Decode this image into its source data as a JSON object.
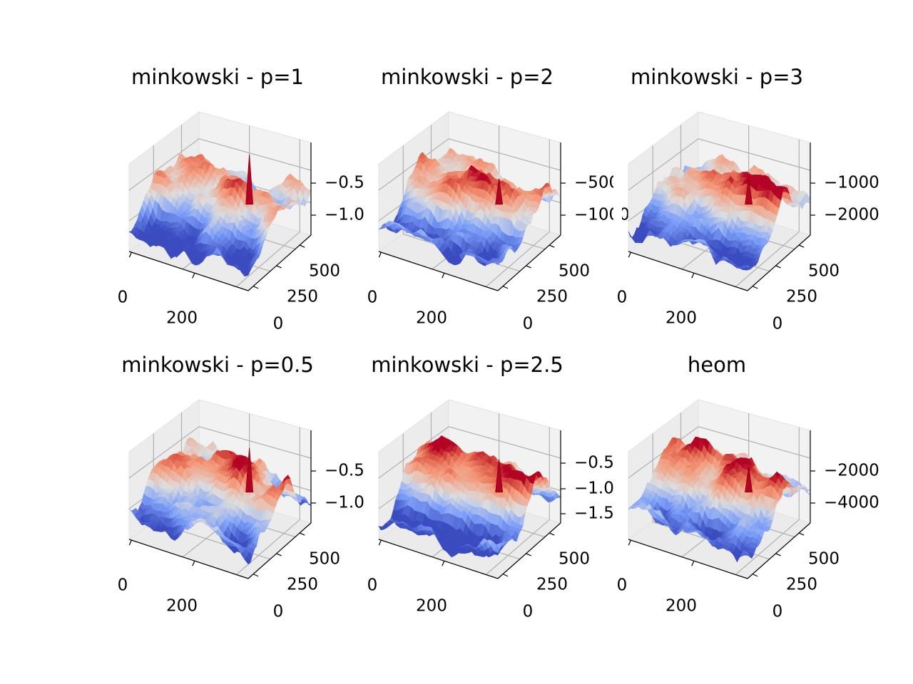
{
  "chart_data": [
    {
      "type": "surface",
      "title": "minkowski - p=1",
      "x_ticks": [
        "0",
        "200"
      ],
      "y_ticks": [
        "0",
        "250",
        "500"
      ],
      "z_ticks": [
        "−0.5",
        "−1.0"
      ],
      "colormap": "coolwarm",
      "grid": true
    },
    {
      "type": "surface",
      "title": "minkowski - p=2",
      "x_ticks": [
        "0",
        "200"
      ],
      "y_ticks": [
        "0",
        "250",
        "500"
      ],
      "z_ticks": [
        "−500",
        "−1000"
      ],
      "colormap": "coolwarm",
      "grid": true
    },
    {
      "type": "surface",
      "title": "minkowski - p=3",
      "x_ticks": [
        "0",
        "200"
      ],
      "y_ticks": [
        "0",
        "250",
        "500"
      ],
      "z_ticks": [
        "−1000",
        "−2000"
      ],
      "colormap": "coolwarm",
      "grid": true
    },
    {
      "type": "surface",
      "title": "minkowski - p=0.5",
      "x_ticks": [
        "0",
        "200"
      ],
      "y_ticks": [
        "0",
        "250",
        "500"
      ],
      "z_ticks": [
        "−0.5",
        "−1.0"
      ],
      "colormap": "coolwarm",
      "grid": true
    },
    {
      "type": "surface",
      "title": "minkowski - p=2.5",
      "x_ticks": [
        "0",
        "200"
      ],
      "y_ticks": [
        "0",
        "250",
        "500"
      ],
      "z_ticks": [
        "−0.5",
        "−1.0",
        "−1.5"
      ],
      "colormap": "coolwarm",
      "grid": true
    },
    {
      "type": "surface",
      "title": "heom",
      "x_ticks": [
        "0",
        "200"
      ],
      "y_ticks": [
        "0",
        "250",
        "500"
      ],
      "z_ticks": [
        "−2000",
        "−4000"
      ],
      "colormap": "coolwarm",
      "grid": true
    }
  ]
}
